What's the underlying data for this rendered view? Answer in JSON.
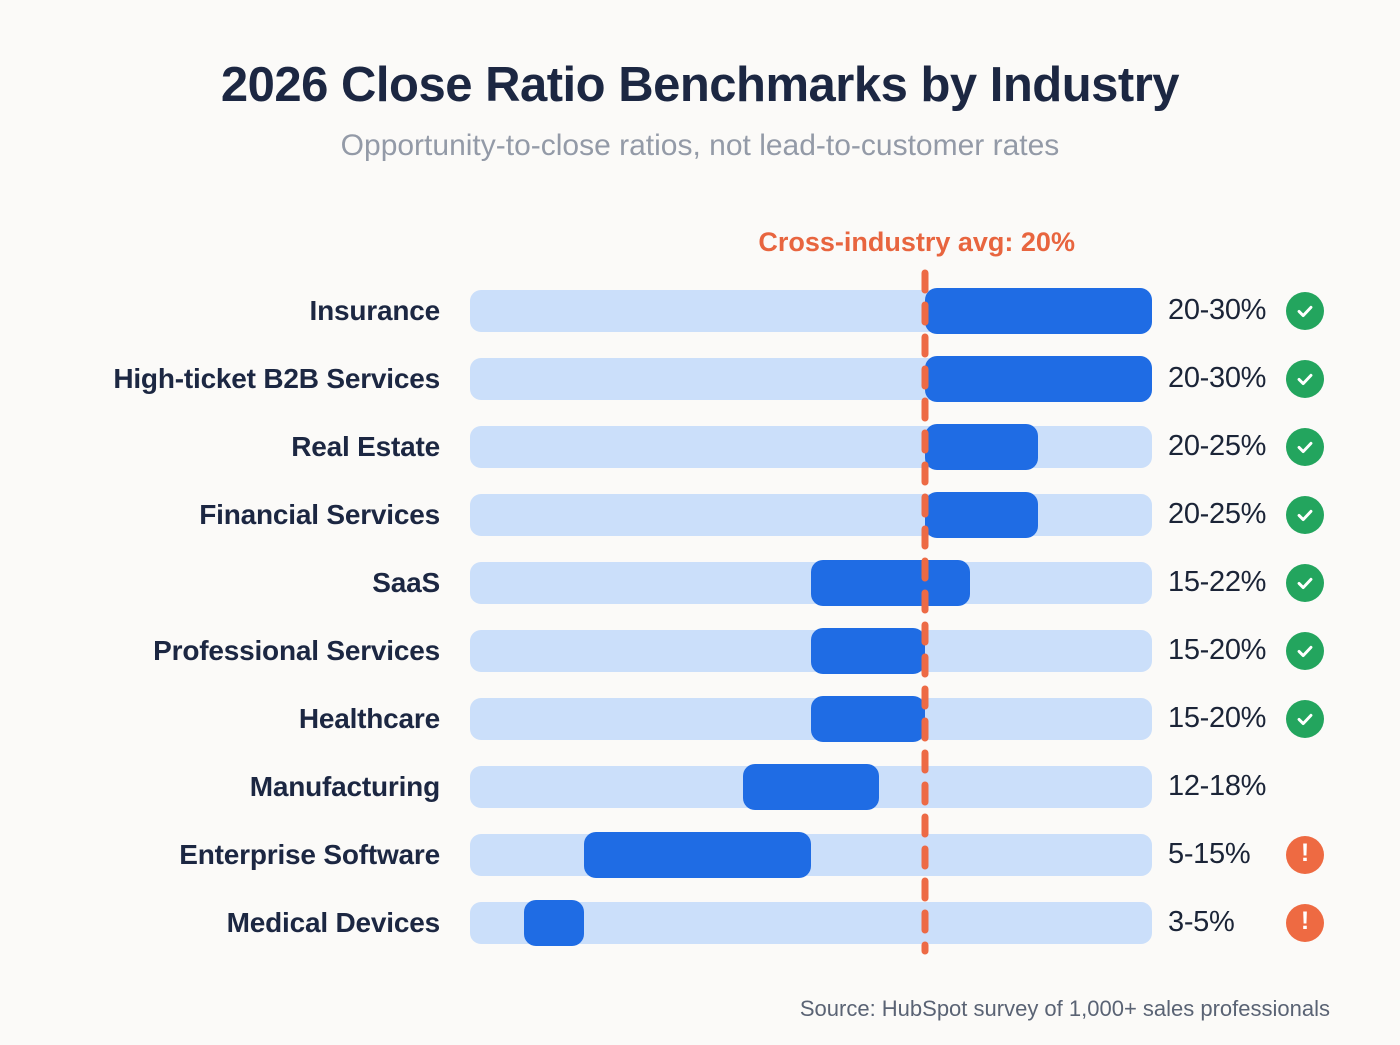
{
  "colors": {
    "background": "#fbfaf8",
    "ink": "#1c2742",
    "muted": "#939aa7",
    "bar_track": "#cbdffa",
    "bar_fill": "#1f6ce4",
    "accent_orange": "#e8653f",
    "avg_line": "#ed6a45",
    "status_good": "#23a55e",
    "status_warning": "#ee6a42"
  },
  "chart_data": {
    "type": "bar",
    "orientation": "horizontal-range",
    "title": "2026 Close Ratio Benchmarks by Industry",
    "subtitle": "Opportunity-to-close ratios, not lead-to-customer rates",
    "source": "Source: HubSpot survey of 1,000+ sales professionals",
    "xlabel": "",
    "ylabel": "",
    "xlim": [
      0,
      30
    ],
    "grid": false,
    "legend": false,
    "categories": [
      "Insurance",
      "High-ticket B2B Services",
      "Real Estate",
      "Financial Services",
      "SaaS",
      "Professional Services",
      "Healthcare",
      "Manufacturing",
      "Enterprise Software",
      "Medical Devices"
    ],
    "series": [
      {
        "name": "Close ratio range (%)",
        "ranges": [
          [
            20,
            30
          ],
          [
            20,
            30
          ],
          [
            20,
            25
          ],
          [
            20,
            25
          ],
          [
            15,
            22
          ],
          [
            15,
            20
          ],
          [
            15,
            20
          ],
          [
            12,
            18
          ],
          [
            5,
            15
          ],
          [
            3,
            5
          ]
        ]
      }
    ],
    "value_labels": [
      "20-30%",
      "20-30%",
      "20-25%",
      "20-25%",
      "15-22%",
      "15-20%",
      "15-20%",
      "12-18%",
      "5-15%",
      "3-5%"
    ],
    "statuses": [
      "check",
      "check",
      "check",
      "check",
      "check",
      "check",
      "check",
      "none",
      "warning",
      "warning"
    ],
    "average_line": {
      "value": 20,
      "label": "Cross-industry avg: 20%",
      "style": "dashed"
    }
  }
}
